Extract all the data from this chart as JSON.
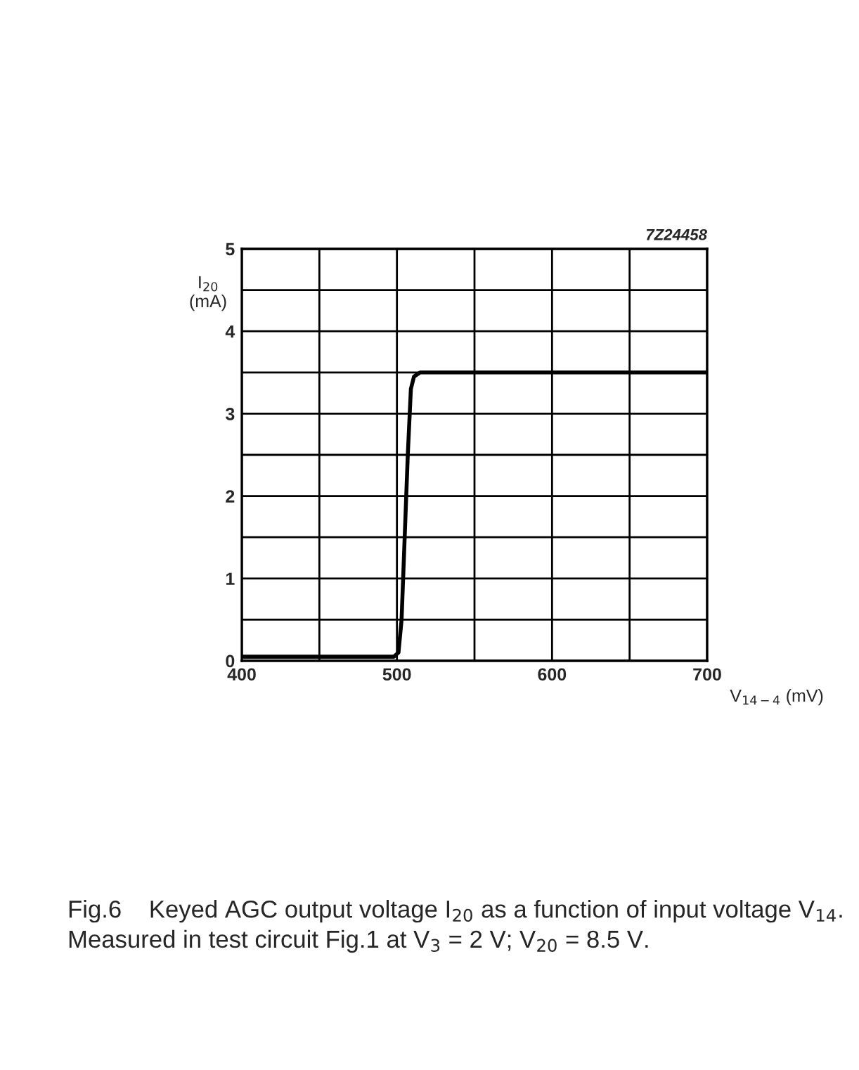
{
  "chart_data": {
    "type": "line",
    "xlabel": "V$_{14−4}$ (mV)",
    "ylabel": "I$_{20}$\n(mA)",
    "annotations": [
      "7Z24458",
      "Fig.6    Keyed AGC output voltage I$_{20}$ as a function of input voltage V$_{14}$. Measured in test circuit Fig.1 at V$_{3}$ = 2 V; V$_{20}$ = 8.5 V."
    ],
    "series": [
      {
        "color": "#000000",
        "x": [
          400,
          498,
          501,
          503,
          505,
          507,
          509,
          511,
          515,
          700
        ],
        "values": [
          0.05,
          0.05,
          0.1,
          0.5,
          1.5,
          2.5,
          3.3,
          3.45,
          3.5,
          3.5
        ]
      }
    ],
    "xlim": [
      400,
      700
    ],
    "ylim": [
      0,
      5
    ],
    "xticks": [
      400,
      {
        "value": 450,
        "label": null
      },
      500,
      {
        "value": 550,
        "label": null
      },
      600,
      {
        "value": 650,
        "label": null
      },
      700
    ],
    "yticks": [
      0,
      {
        "value": 0.5,
        "label": null
      },
      1,
      {
        "value": 1.5,
        "label": null
      },
      2,
      {
        "value": 2.5,
        "label": null
      },
      3,
      {
        "value": 3.5,
        "label": null
      },
      4,
      {
        "value": 4.5,
        "label": null
      },
      5
    ],
    "grid": true,
    "legend": false,
    "line_style": "solid",
    "marker": "none"
  }
}
